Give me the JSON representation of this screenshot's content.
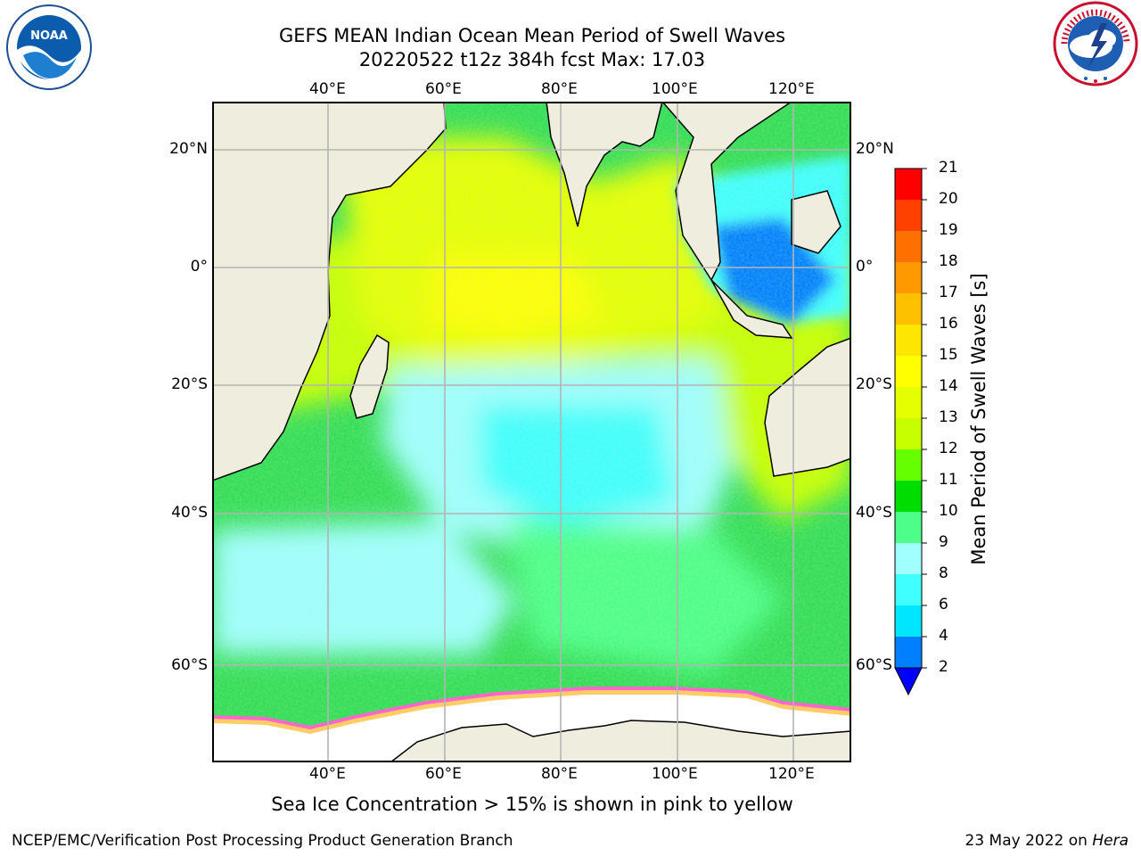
{
  "title": {
    "line1": "GEFS MEAN Indian Ocean Mean Period of Swell Waves",
    "line2": "20220522 t12z 384h fcst   Max: 17.03"
  },
  "logos": {
    "left": {
      "name": "noaa-logo",
      "text": "NOAA",
      "ring_text": "NATIONAL OCEANIC AND ATMOSPHERIC ADMINISTRATION · U.S. DEPARTMENT OF COMMERCE"
    },
    "right": {
      "name": "nws-logo",
      "ring_text": "NATIONAL WEATHER SERVICE"
    }
  },
  "map": {
    "region": "Indian Ocean",
    "projection": "Plate Carree",
    "lon_range": [
      20,
      130
    ],
    "lat_range": [
      -72,
      28
    ],
    "lon_labels": [
      "40°E",
      "60°E",
      "80°E",
      "100°E",
      "120°E"
    ],
    "lat_labels": [
      "20°N",
      "0°",
      "20°S",
      "40°S",
      "60°S"
    ],
    "gridlines": true,
    "colors": {
      "land": "#efedde",
      "coastline": "#000000",
      "grid": "#b4b4b4",
      "sea_ice": "#ffffff",
      "sea_ice_edge": [
        "#ff66cc",
        "#ffcc66",
        "#ffff66"
      ]
    },
    "field_zones": [
      {
        "region": "Arabian Sea / Bay of Bengal / north equatorial band",
        "approx_period_s": "12–15"
      },
      {
        "region": "Subtropical central Indian Ocean",
        "approx_period_s": "7–9"
      },
      {
        "region": "Southern Ocean belt 40°S–60°S",
        "approx_period_s": "8–11"
      },
      {
        "region": "Indonesian seas / South China Sea",
        "approx_period_s": "2–6"
      },
      {
        "region": "Along Antarctic ice edge",
        "approx_period_s": "10–11"
      }
    ]
  },
  "colorbar": {
    "label": "Mean Period of Swell Waves [s]",
    "ticks": [
      "2",
      "4",
      "6",
      "8",
      "9",
      "10",
      "11",
      "12",
      "13",
      "14",
      "15",
      "16",
      "17",
      "18",
      "19",
      "20",
      "21"
    ],
    "levels": [
      2,
      4,
      6,
      8,
      9,
      10,
      11,
      12,
      13,
      14,
      15,
      16,
      17,
      18,
      19,
      20,
      21
    ],
    "colors": [
      "#0080ff",
      "#00e6ff",
      "#40ffff",
      "#a0ffff",
      "#4dff88",
      "#00dd00",
      "#66ff00",
      "#c8ff00",
      "#e6ff00",
      "#ffff00",
      "#ffe600",
      "#ffc000",
      "#ff9900",
      "#ff7000",
      "#ff4000",
      "#ff0000"
    ],
    "under_color": "#0000ff"
  },
  "footnote": "Sea Ice Concentration > 15% is shown in pink to yellow",
  "credits": {
    "left": "NCEP/EMC/Verification Post Processing Product Generation Branch",
    "right_date": "23 May 2022 on ",
    "right_host": "Hera"
  }
}
